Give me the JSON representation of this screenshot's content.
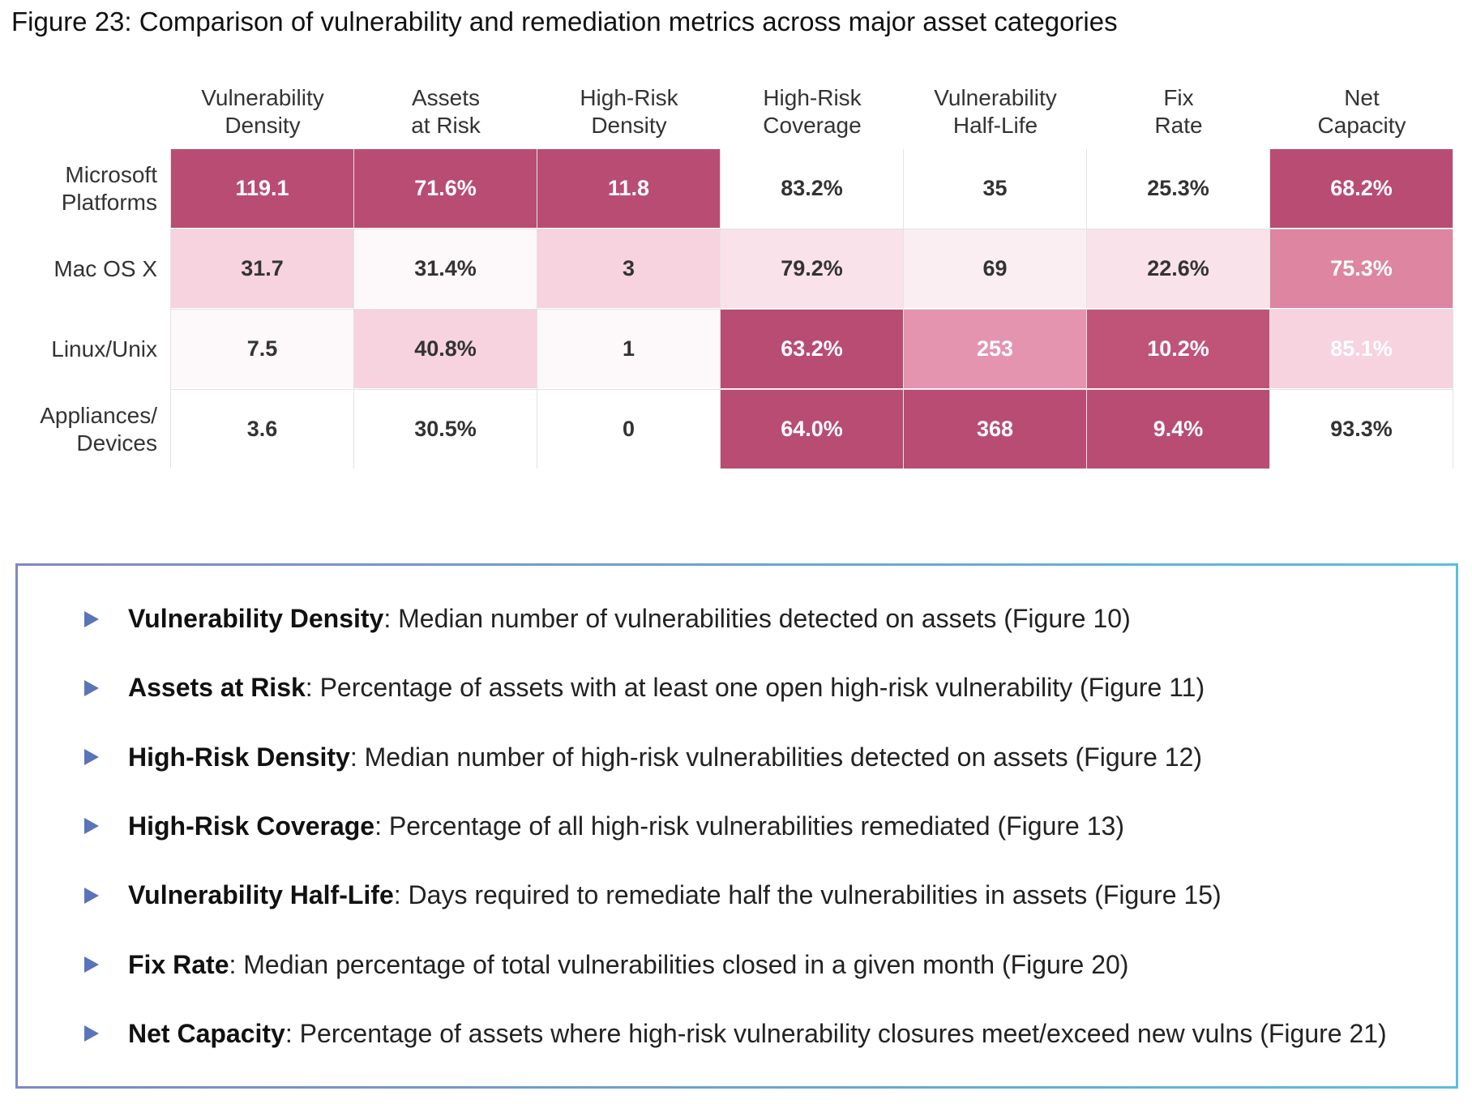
{
  "figure_title": "Figure 23: Comparison of vulnerability and remediation metrics across major asset categories",
  "chart_data": {
    "type": "heatmap",
    "title": "Figure 23: Comparison of vulnerability and remediation metrics across major asset categories",
    "columns": [
      [
        "Vulnerability",
        "Density"
      ],
      [
        "Assets",
        "at Risk"
      ],
      [
        "High-Risk",
        "Density"
      ],
      [
        "High-Risk",
        "Coverage"
      ],
      [
        "Vulnerability",
        "Half-Life"
      ],
      [
        "Fix",
        "Rate"
      ],
      [
        "Net",
        "Capacity"
      ]
    ],
    "rows": [
      [
        "Microsoft",
        "Platforms"
      ],
      [
        "Mac OS X"
      ],
      [
        "Linux/Unix"
      ],
      [
        "Appliances/",
        "Devices"
      ]
    ],
    "values": [
      [
        "119.1",
        "71.6%",
        "11.8",
        "83.2%",
        "35",
        "25.3%",
        "68.2%"
      ],
      [
        "31.7",
        "31.4%",
        "3",
        "79.2%",
        "69",
        "22.6%",
        "75.3%"
      ],
      [
        "7.5",
        "40.8%",
        "1",
        "63.2%",
        "253",
        "10.2%",
        "85.1%"
      ],
      [
        "3.6",
        "30.5%",
        "0",
        "64.0%",
        "368",
        "9.4%",
        "93.3%"
      ]
    ],
    "cell_colors": [
      [
        "#b94c72",
        "#b94c72",
        "#b94c72",
        "#ffffff",
        "#ffffff",
        "#ffffff",
        "#b94c72"
      ],
      [
        "#f6d3de",
        "#fdf8f9",
        "#f6d3de",
        "#f9e2e9",
        "#fbeef2",
        "#f9e2e9",
        "#dd85a1"
      ],
      [
        "#fdf8f9",
        "#f6d3de",
        "#fdf8f9",
        "#b94c72",
        "#e494ae",
        "#c05478",
        "#f6d3de"
      ],
      [
        "#ffffff",
        "#ffffff",
        "#ffffff",
        "#b94c72",
        "#b94c72",
        "#b94c72",
        "#ffffff"
      ]
    ],
    "text_colors": [
      [
        "#ffffff",
        "#ffffff",
        "#ffffff",
        "#333333",
        "#333333",
        "#333333",
        "#ffffff"
      ],
      [
        "#333333",
        "#333333",
        "#333333",
        "#333333",
        "#333333",
        "#333333",
        "#ffffff"
      ],
      [
        "#333333",
        "#333333",
        "#333333",
        "#ffffff",
        "#ffffff",
        "#ffffff",
        "#ffffff"
      ],
      [
        "#333333",
        "#333333",
        "#333333",
        "#ffffff",
        "#ffffff",
        "#ffffff",
        "#333333"
      ]
    ]
  },
  "legend": [
    {
      "term": "Vulnerability Density",
      "desc": ": Median number of vulnerabilities detected on assets (Figure 10)"
    },
    {
      "term": "Assets at Risk",
      "desc": ": Percentage of assets with at least one open high-risk vulnerability (Figure 11)"
    },
    {
      "term": "High-Risk Density",
      "desc": ": Median number of high-risk vulnerabilities detected on assets (Figure 12)"
    },
    {
      "term": "High-Risk Coverage",
      "desc": ": Percentage of all high-risk vulnerabilities remediated (Figure 13)"
    },
    {
      "term": "Vulnerability Half-Life",
      "desc": ": Days required to remediate half the vulnerabilities in assets (Figure 15)"
    },
    {
      "term": "Fix Rate",
      "desc": ": Median percentage of total vulnerabilities closed in a given month (Figure 20)"
    },
    {
      "term": "Net Capacity",
      "desc": ": Percentage of assets where high-risk vulnerability closures meet/exceed new vulns (Figure 21)"
    }
  ],
  "colors": {
    "dark": "#b94c72",
    "bullet": "#5a74b8",
    "border_start": "#8088c4",
    "border_end": "#5bbfd9"
  }
}
